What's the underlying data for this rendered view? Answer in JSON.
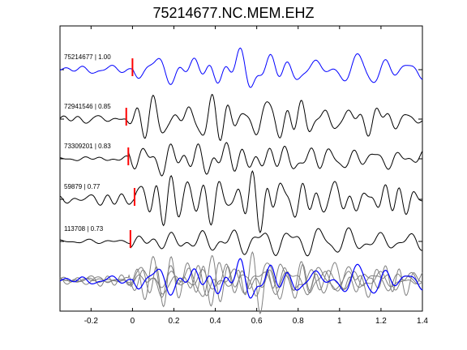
{
  "chart_data": {
    "type": "line",
    "title": "75214677.NC.MEM.EHZ",
    "xlim": [
      -0.35,
      1.4
    ],
    "xticks": [
      -0.2,
      0,
      0.2,
      0.4,
      0.6,
      0.8,
      1,
      1.2,
      1.4
    ],
    "xtick_labels": [
      "-0.2",
      "0",
      "0.2",
      "0.4",
      "0.6",
      "0.8",
      "1",
      "1.2",
      "1.4"
    ],
    "grid": false,
    "pick_time": 0,
    "colors": {
      "master": "#0000ff",
      "trace": "#000000",
      "overlay": "#808080",
      "pick": "#ff0000"
    },
    "traces": [
      {
        "label": "75214677 | 1.00",
        "pick": 0.0,
        "color": "#0000ff",
        "seed": 11
      },
      {
        "label": "72941546 | 0.85",
        "pick": -0.03,
        "color": "#000000",
        "seed": 23
      },
      {
        "label": "73309201 | 0.83",
        "pick": -0.02,
        "color": "#000000",
        "seed": 37
      },
      {
        "label": "59879 | 0.77",
        "pick": 0.01,
        "color": "#000000",
        "seed": 41
      },
      {
        "label": "113708 | 0.73",
        "pick": -0.01,
        "color": "#000000",
        "seed": 53
      }
    ],
    "stack": {
      "label": "",
      "description": "overlay of all aligned traces"
    }
  }
}
